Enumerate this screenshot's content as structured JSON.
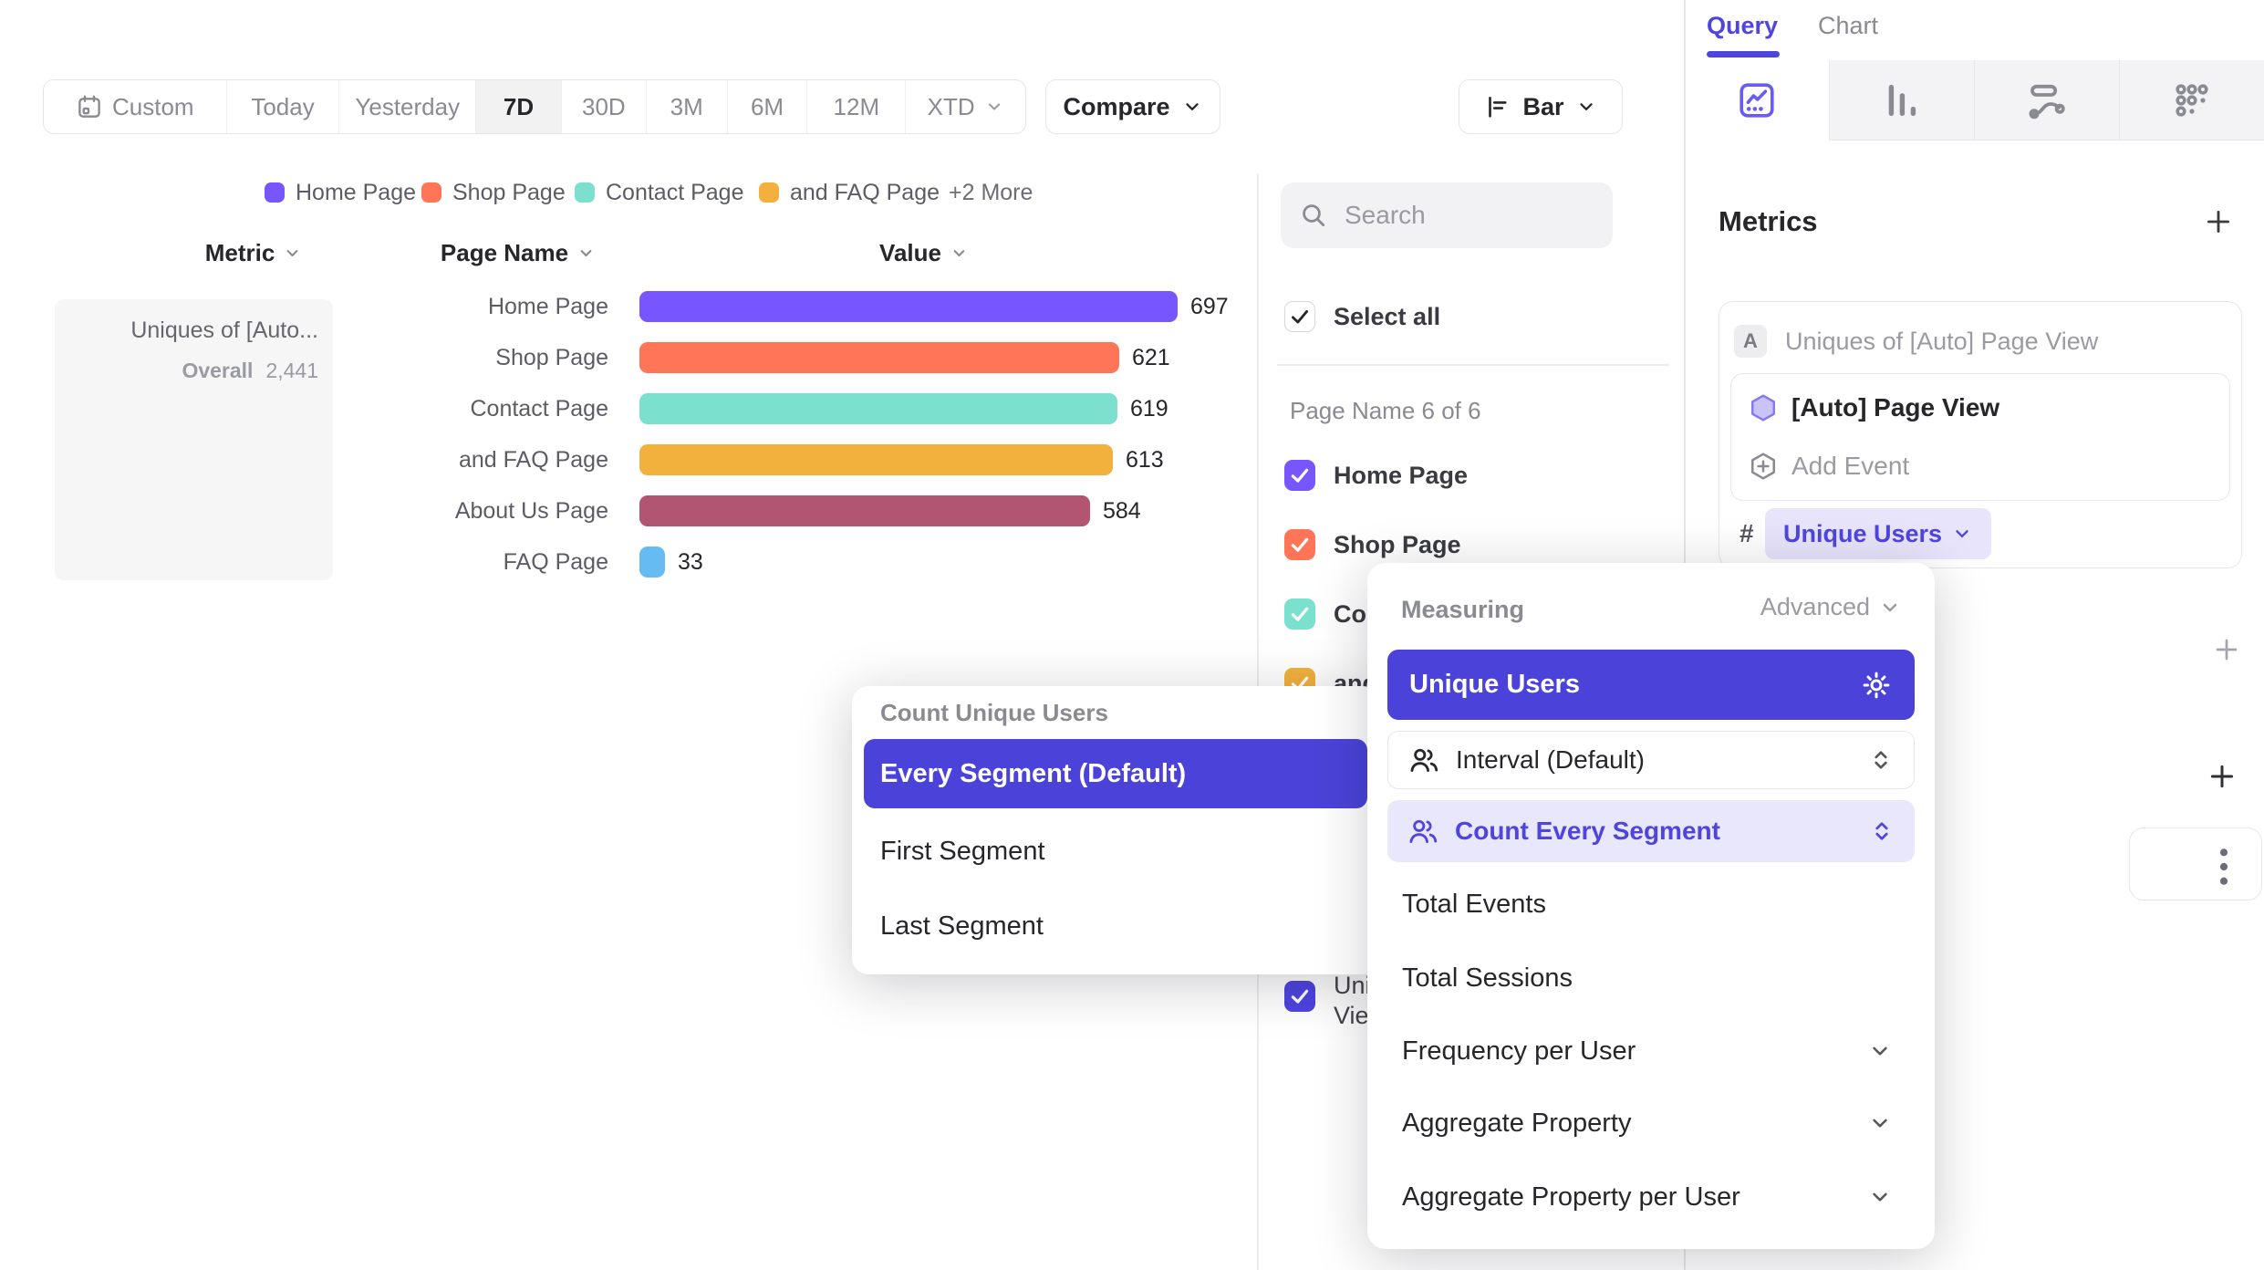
{
  "colors": {
    "brand": "#4F44E0",
    "selected_row": "#4B43D9",
    "chip_bg": "#E7E4FB",
    "row_highlight": "#E9E7FC",
    "panel_border": "#E7E7EA",
    "muted_text": "#8A8A93",
    "dark_text": "#2F2F35"
  },
  "toolbar": {
    "date_ranges": [
      {
        "label": "Custom"
      },
      {
        "label": "Today"
      },
      {
        "label": "Yesterday"
      },
      {
        "label": "7D"
      },
      {
        "label": "30D"
      },
      {
        "label": "3M"
      },
      {
        "label": "6M"
      },
      {
        "label": "12M"
      },
      {
        "label": "XTD"
      }
    ],
    "active_range": "7D",
    "compare_label": "Compare",
    "chart_type_label": "Bar"
  },
  "legend": {
    "items": [
      {
        "label": "Home Page",
        "color": "#7856FF"
      },
      {
        "label": "Shop Page",
        "color": "#FF7557"
      },
      {
        "label": "Contact Page",
        "color": "#7CE0CE"
      },
      {
        "label": "and FAQ Page",
        "color": "#F2B13C"
      }
    ],
    "more_label": "+2 More"
  },
  "table": {
    "metric_header": "Metric",
    "dimension_header": "Page Name",
    "value_header": "Value"
  },
  "metric_summary": {
    "title": "Uniques of [Auto...",
    "overall_label": "Overall",
    "overall_value": "2,441"
  },
  "chart_data": {
    "type": "bar",
    "orientation": "horizontal",
    "series_name": "Uniques of [Auto] Page View",
    "categories": [
      "Home Page",
      "Shop Page",
      "Contact Page",
      "and FAQ Page",
      "About Us Page",
      "FAQ Page"
    ],
    "values": [
      697,
      621,
      619,
      613,
      584,
      33
    ],
    "colors": [
      "#7856FF",
      "#FF7557",
      "#7CE0CE",
      "#F2B13C",
      "#B25572",
      "#67BBF3"
    ],
    "overall_total": "2,441",
    "xlim": [
      0,
      697
    ],
    "grid": false,
    "legend_position": "top"
  },
  "filters": {
    "search_placeholder": "Search",
    "select_all_label": "Select all",
    "group_label": "Page Name 6 of 6",
    "items": [
      {
        "label": "Home Page",
        "color": "#7856FF",
        "checked": true
      },
      {
        "label": "Shop Page",
        "color": "#FF7557",
        "checked": true
      },
      {
        "label": "Contact Page",
        "color": "#7CE0CE",
        "checked": true
      },
      {
        "label": "and FAQ Page",
        "color": "#F2B13C",
        "checked": true
      },
      {
        "label": "About Us Page",
        "color": "#B25572",
        "checked": true
      },
      {
        "label": "FAQ Page",
        "color": "#67BBF3",
        "checked": true
      }
    ],
    "occluded_item": {
      "line1": "Uniques of [Auto] Page",
      "line2": "View",
      "color": "#4F44E0",
      "checked": true
    }
  },
  "right_panel": {
    "tabs": [
      {
        "label": "Query",
        "active": true
      },
      {
        "label": "Chart",
        "active": false
      }
    ],
    "report_tabs": [
      "insights",
      "funnels",
      "flows",
      "retention"
    ],
    "metrics": {
      "title": "Metrics",
      "badge": "A",
      "metric_label": "Uniques of [Auto] Page View",
      "event_label": "[Auto] Page View",
      "add_event_label": "Add Event",
      "measure_prefix": "#",
      "measure_value": "Unique Users"
    }
  },
  "count_popup": {
    "title": "Count Unique Users",
    "options": [
      {
        "label": "Every Segment (Default)",
        "selected": true
      },
      {
        "label": "First Segment",
        "selected": false
      },
      {
        "label": "Last Segment",
        "selected": false
      }
    ]
  },
  "measuring_popup": {
    "title": "Measuring",
    "advanced_label": "Advanced",
    "options": [
      {
        "label": "Unique Users",
        "selected": true
      },
      {
        "label": "Interval (Default)"
      },
      {
        "label": "Count Every Segment",
        "highlighted": true
      },
      {
        "label": "Total Events"
      },
      {
        "label": "Total Sessions"
      },
      {
        "label": "Frequency per User",
        "expandable": true
      },
      {
        "label": "Aggregate Property",
        "expandable": true
      },
      {
        "label": "Aggregate Property per User",
        "expandable": true
      }
    ]
  }
}
